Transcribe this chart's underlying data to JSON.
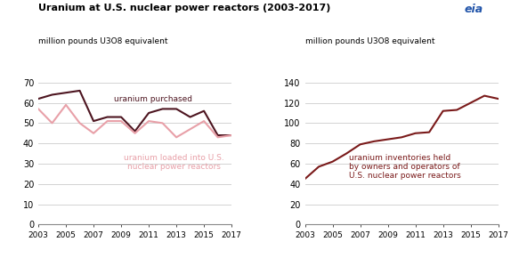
{
  "title": "Uranium at U.S. nuclear power reactors (2003-2017)",
  "ylabel_left": "million pounds U3O8 equivalent",
  "ylabel_right": "million pounds U3O8 equivalent",
  "years": [
    2003,
    2004,
    2005,
    2006,
    2007,
    2008,
    2009,
    2010,
    2011,
    2012,
    2013,
    2014,
    2015,
    2016,
    2017
  ],
  "purchased": [
    62,
    64,
    65,
    66,
    51,
    53,
    53,
    46,
    55,
    57,
    57,
    53,
    56,
    44,
    44
  ],
  "loaded": [
    57,
    50,
    59,
    50,
    45,
    51,
    51,
    45,
    51,
    50,
    43,
    47,
    51,
    43,
    44
  ],
  "inventories": [
    45,
    57,
    62,
    70,
    79,
    82,
    84,
    86,
    90,
    91,
    112,
    113,
    120,
    127,
    124
  ],
  "purchased_color": "#4d1520",
  "loaded_color": "#e8a0a8",
  "inventories_color": "#7a1a1a",
  "left_ylim": [
    0,
    70
  ],
  "left_yticks": [
    0,
    10,
    20,
    30,
    40,
    50,
    60,
    70
  ],
  "right_ylim": [
    0,
    140
  ],
  "right_yticks": [
    0,
    20,
    40,
    60,
    80,
    100,
    120,
    140
  ],
  "bg_color": "#ffffff",
  "grid_color": "#cccccc",
  "label_purchased": "uranium purchased",
  "label_loaded": "uranium loaded into U.S.\nnuclear power reactors",
  "label_inventories": "uranium inventories held\nby owners and operators of\nU.S. nuclear power reactors",
  "purchased_label_color": "#4d1520",
  "loaded_label_color": "#e8a0a8",
  "inventories_label_color": "#7a1a1a",
  "xticks": [
    2003,
    2005,
    2007,
    2009,
    2011,
    2013,
    2015,
    2017
  ]
}
